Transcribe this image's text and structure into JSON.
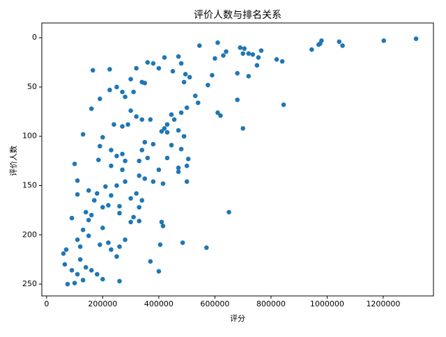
{
  "chart_data": {
    "type": "scatter",
    "title": "评价人数与排名关系",
    "x_label": "评分",
    "y_label": "评价人数",
    "color": "#1f77b4",
    "xlim": [
      -17000,
      1379000
    ],
    "ylim": [
      -15,
      262
    ],
    "y_inverted": true,
    "xticks": [
      0,
      200000,
      400000,
      600000,
      800000,
      1000000,
      1200000
    ],
    "yticks": [
      0,
      50,
      100,
      150,
      200,
      250
    ],
    "x": [
      1317000,
      1202000,
      1043000,
      1055000,
      980000,
      975000,
      970000,
      945000,
      840000,
      820000,
      765000,
      755000,
      750000,
      735000,
      720000,
      705000,
      690000,
      700000,
      640000,
      630000,
      610000,
      600000,
      545000,
      590000,
      680000,
      720000,
      845000,
      680000,
      700000,
      610000,
      620000,
      575000,
      650000,
      570000,
      485000,
      400000,
      370000,
      405000,
      410000,
      415000,
      415000,
      400000,
      430000,
      445000,
      470000,
      470000,
      500000,
      500000,
      505000,
      480000,
      490000,
      470000,
      455000,
      430000,
      410000,
      420000,
      430000,
      445000,
      480000,
      500000,
      540000,
      530000,
      510000,
      495000,
      490000,
      470000,
      480000,
      450000,
      420000,
      400000,
      380000,
      360000,
      340000,
      350000,
      320000,
      300000,
      310000,
      300000,
      320000,
      340000,
      370000,
      380000,
      350000,
      340000,
      330000,
      360000,
      330000,
      350000,
      380000,
      320000,
      300000,
      340000,
      330000,
      300000,
      310000,
      330000,
      280000,
      260000,
      230000,
      250000,
      260000,
      200000,
      180000,
      160000,
      140000,
      110000,
      100000,
      75000,
      65000,
      60000,
      70000,
      90000,
      100000,
      110000,
      110000,
      130000,
      165000,
      225000,
      160000,
      190000,
      225000,
      250000,
      270000,
      280000,
      290000,
      240000,
      270000,
      200000,
      190000,
      230000,
      250000,
      270000,
      280000,
      230000,
      210000,
      180000,
      160000,
      140000,
      150000,
      130000,
      200000,
      220000,
      190000,
      120000,
      120000,
      150000,
      170000,
      150000,
      200000,
      260000,
      260000,
      230000,
      250000,
      280000,
      110000,
      130000,
      90000,
      185000,
      270000,
      220000
    ],
    "y": [
      1,
      3,
      4,
      8,
      3,
      6,
      7,
      12,
      24,
      22,
      13,
      20,
      28,
      17,
      16,
      11,
      10,
      16,
      14,
      18,
      5,
      21,
      8,
      38,
      36,
      39,
      68,
      63,
      92,
      76,
      79,
      48,
      177,
      213,
      208,
      237,
      227,
      210,
      187,
      191,
      148,
      134,
      122,
      109,
      132,
      136,
      146,
      130,
      123,
      113,
      100,
      94,
      83,
      96,
      95,
      92,
      88,
      78,
      76,
      71,
      66,
      59,
      40,
      37,
      45,
      19,
      26,
      34,
      20,
      31,
      26,
      25,
      45,
      46,
      31,
      42,
      55,
      74,
      80,
      83,
      83,
      108,
      106,
      114,
      125,
      122,
      140,
      143,
      146,
      158,
      163,
      165,
      172,
      187,
      182,
      186,
      205,
      212,
      215,
      222,
      247,
      245,
      240,
      236,
      233,
      240,
      249,
      250,
      230,
      219,
      215,
      183,
      128,
      145,
      159,
      98,
      33,
      32,
      72,
      62,
      53,
      50,
      55,
      60,
      88,
      88,
      90,
      101,
      110,
      114,
      120,
      118,
      125,
      130,
      151,
      158,
      180,
      177,
      185,
      195,
      193,
      208,
      210,
      212,
      225,
      201,
      165,
      155,
      172,
      171,
      178,
      160,
      150,
      146,
      205,
      246,
      236,
      124,
      134,
      170
    ]
  }
}
